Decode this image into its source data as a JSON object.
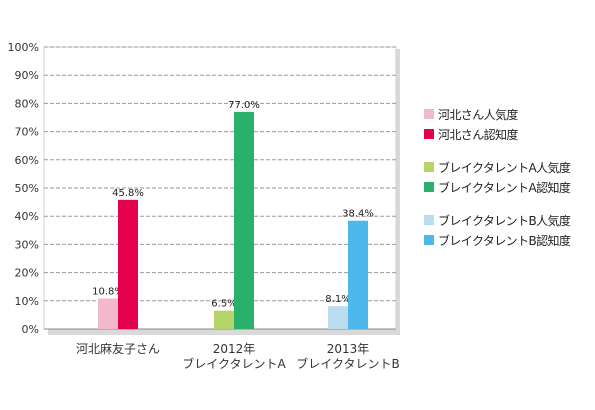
{
  "chart_data": {
    "type": "bar",
    "ylim": [
      0,
      100
    ],
    "ytick_step": 10,
    "ytick_suffix": "%",
    "grid": true,
    "legend_position": "right",
    "categories": [
      [
        "河北麻友子さん"
      ],
      [
        "2012年",
        "ブレイクタレントA"
      ],
      [
        "2013年",
        "ブレイクタレントB"
      ]
    ],
    "series": [
      {
        "name": "河北さん人気度",
        "color": "#f2b8cb",
        "values": [
          10.8,
          null,
          null
        ]
      },
      {
        "name": "河北さん認知度",
        "color": "#e5004f",
        "values": [
          45.8,
          null,
          null
        ]
      },
      {
        "name": "ブレイクタレントA人気度",
        "color": "#b5d56a",
        "values": [
          null,
          6.5,
          null
        ]
      },
      {
        "name": "ブレイクタレントA認知度",
        "color": "#2ab06b",
        "values": [
          null,
          77.0,
          null
        ]
      },
      {
        "name": "ブレイクタレントB人気度",
        "color": "#bcdcef",
        "values": [
          null,
          null,
          8.1
        ]
      },
      {
        "name": "ブレイクタレントB認知度",
        "color": "#4fb8ea",
        "values": [
          null,
          null,
          38.4
        ]
      }
    ],
    "bars": [
      {
        "category": 0,
        "series": 0,
        "label": "10.8%"
      },
      {
        "category": 0,
        "series": 1,
        "label": "45.8%"
      },
      {
        "category": 1,
        "series": 2,
        "label": "6.5%"
      },
      {
        "category": 1,
        "series": 3,
        "label": "77.0%"
      },
      {
        "category": 2,
        "series": 4,
        "label": "8.1%"
      },
      {
        "category": 2,
        "series": 5,
        "label": "38.4%"
      }
    ],
    "legend_groups": [
      [
        0,
        1
      ],
      [
        2,
        3
      ],
      [
        4,
        5
      ]
    ]
  }
}
